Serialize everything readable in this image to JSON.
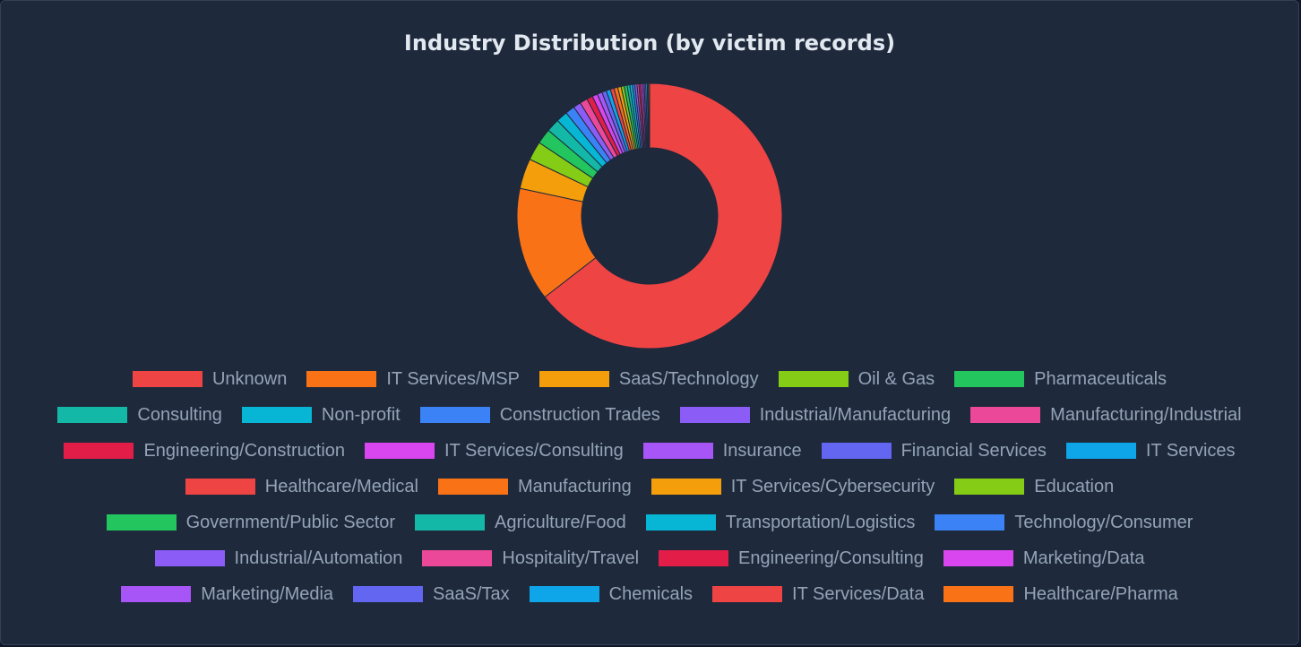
{
  "chart_data": {
    "type": "pie",
    "variant": "donut",
    "title": "Industry Distribution (by victim records)",
    "legend_position": "bottom",
    "slice_border_color": "#1e293b",
    "categories": [
      "Unknown",
      "IT Services/MSP",
      "SaaS/Technology",
      "Oil & Gas",
      "Pharmaceuticals",
      "Consulting",
      "Non-profit",
      "Construction Trades",
      "Industrial/Manufacturing",
      "Manufacturing/Industrial",
      "Engineering/Construction",
      "IT Services/Consulting",
      "Insurance",
      "Financial Services",
      "IT Services",
      "Healthcare/Medical",
      "Manufacturing",
      "IT Services/Cybersecurity",
      "Education",
      "Government/Public Sector",
      "Agriculture/Food",
      "Transportation/Logistics",
      "Technology/Consumer",
      "Industrial/Automation",
      "Hospitality/Travel",
      "Engineering/Consulting",
      "Marketing/Data",
      "Marketing/Media",
      "SaaS/Tax",
      "Chemicals",
      "IT Services/Data",
      "Healthcare/Pharma"
    ],
    "values": [
      140,
      30,
      8,
      5,
      4,
      3.5,
      3,
      2.5,
      2,
      2,
      1.6,
      1.4,
      1.3,
      1.2,
      1.1,
      1,
      1,
      0.9,
      0.8,
      0.8,
      0.7,
      0.7,
      0.6,
      0.6,
      0.5,
      0.5,
      0.5,
      0.4,
      0.4,
      0.4,
      0.3,
      0.3
    ],
    "colors": [
      "#ef4444",
      "#f97316",
      "#f59e0b",
      "#84cc16",
      "#22c55e",
      "#14b8a6",
      "#06b6d4",
      "#3b82f6",
      "#8b5cf6",
      "#ec4899",
      "#e11d48",
      "#d946ef",
      "#a855f7",
      "#6366f1",
      "#0ea5e9",
      "#ef4444",
      "#f97316",
      "#f59e0b",
      "#84cc16",
      "#22c55e",
      "#14b8a6",
      "#06b6d4",
      "#3b82f6",
      "#8b5cf6",
      "#ec4899",
      "#e11d48",
      "#d946ef",
      "#a855f7",
      "#6366f1",
      "#0ea5e9",
      "#ef4444",
      "#f97316"
    ],
    "legend_rows": [
      [
        0,
        1,
        2,
        3,
        4
      ],
      [
        5,
        6,
        7,
        8,
        9
      ],
      [
        10,
        11,
        12,
        13,
        14
      ],
      [
        15,
        16,
        17,
        18
      ],
      [
        19,
        20,
        21,
        22
      ],
      [
        23,
        24,
        25,
        26
      ],
      [
        27,
        28,
        29,
        30,
        31
      ]
    ]
  }
}
